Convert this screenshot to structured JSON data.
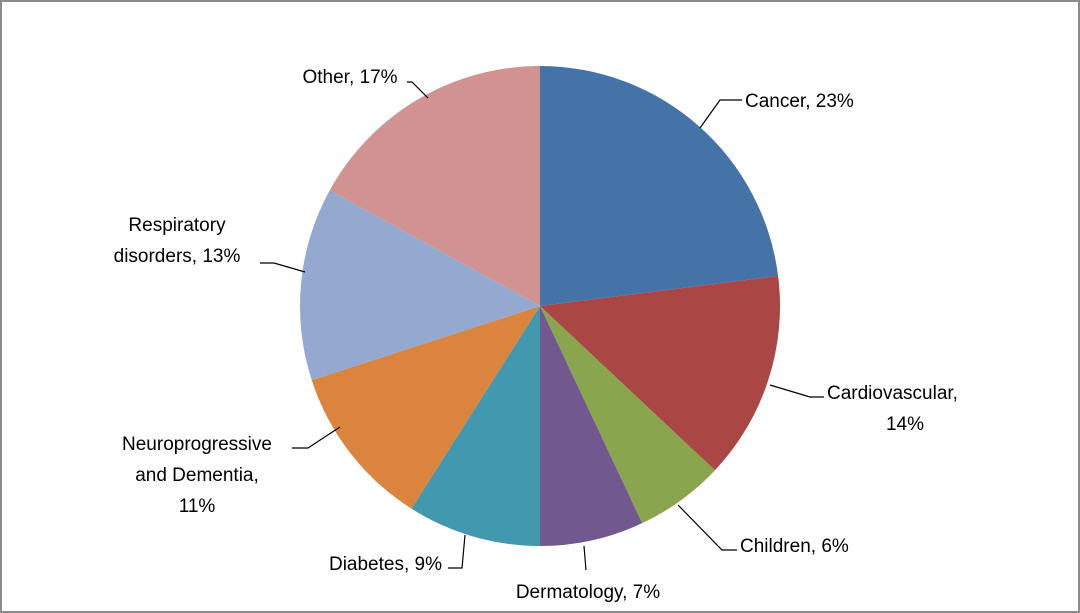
{
  "chart_data": {
    "type": "pie",
    "start": "12 o'clock",
    "direction": "clockwise",
    "legend": "none",
    "data_labels": "outside with leader lines",
    "slices": [
      {
        "label": "Cancer",
        "value": 23,
        "display": "Cancer, 23%",
        "color": "#4572A7"
      },
      {
        "label": "Cardiovascular",
        "value": 14,
        "display": "Cardiovascular, 14%",
        "color": "#AA4643"
      },
      {
        "label": "Children",
        "value": 6,
        "display": "Children, 6%",
        "color": "#89A54E"
      },
      {
        "label": "Dermatology",
        "value": 7,
        "display": "Dermatology, 7%",
        "color": "#71588F"
      },
      {
        "label": "Diabetes",
        "value": 9,
        "display": "Diabetes, 9%",
        "color": "#4198AF"
      },
      {
        "label": "Neuroprogressive and Dementia",
        "value": 11,
        "display": "Neuroprogressive and Dementia, 11%",
        "color": "#DB843D"
      },
      {
        "label": "Respiratory disorders",
        "value": 13,
        "display": "Respiratory disorders, 13%",
        "color": "#93A9CF"
      },
      {
        "label": "Other",
        "value": 17,
        "display": "Other, 17%",
        "color": "#D19392"
      }
    ]
  }
}
